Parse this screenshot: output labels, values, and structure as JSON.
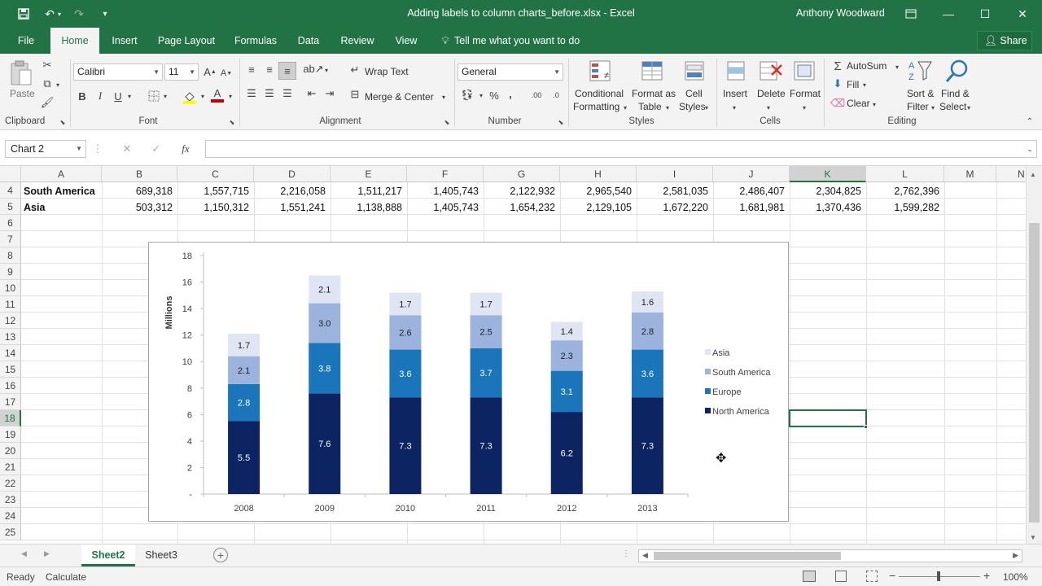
{
  "window": {
    "title": "Adding labels to column charts_before.xlsx - Excel",
    "user": "Anthony Woodward"
  },
  "tabs": [
    "File",
    "Home",
    "Insert",
    "Page Layout",
    "Formulas",
    "Data",
    "Review",
    "View"
  ],
  "tell_me": "Tell me what you want to do",
  "share_label": "Share",
  "ribbon": {
    "clipboard": {
      "paste": "Paste",
      "label": "Clipboard"
    },
    "font": {
      "name": "Calibri",
      "size": "11",
      "label": "Font",
      "bold": "B",
      "italic": "I",
      "underline": "U"
    },
    "alignment": {
      "wrap": "Wrap Text",
      "merge": "Merge & Center",
      "label": "Alignment"
    },
    "number": {
      "format": "General",
      "label": "Number",
      "percent": "%",
      "comma": ","
    },
    "styles": {
      "conditional": "Conditional",
      "conditional2": "Formatting",
      "format_table": "Format as",
      "format_table2": "Table",
      "cell": "Cell",
      "cell2": "Styles",
      "label": "Styles"
    },
    "cells": {
      "insert": "Insert",
      "delete": "Delete",
      "format": "Format",
      "label": "Cells"
    },
    "editing": {
      "autosum": "AutoSum",
      "fill": "Fill",
      "clear": "Clear",
      "sort": "Sort &",
      "sort2": "Filter",
      "find": "Find &",
      "find2": "Select",
      "label": "Editing"
    }
  },
  "formula_bar": {
    "name_box": "Chart 2",
    "fx": "fx",
    "value": ""
  },
  "grid": {
    "columns": [
      "A",
      "B",
      "C",
      "D",
      "E",
      "F",
      "G",
      "H",
      "I",
      "J",
      "K",
      "L",
      "M",
      "N"
    ],
    "selected_column": "K",
    "rows": [
      "4",
      "5",
      "6",
      "7",
      "8",
      "9",
      "10",
      "11",
      "12",
      "13",
      "14",
      "15",
      "16",
      "17",
      "18",
      "19",
      "20",
      "21",
      "22",
      "23",
      "24",
      "25"
    ],
    "selected_row": "18",
    "data_rows": [
      {
        "label": "South America",
        "values": [
          "689,318",
          "1,557,715",
          "2,216,058",
          "1,511,217",
          "1,405,743",
          "2,122,932",
          "2,965,540",
          "2,581,035",
          "2,486,407",
          "2,304,825",
          "2,762,396"
        ]
      },
      {
        "label": "Asia",
        "values": [
          "503,312",
          "1,150,312",
          "1,551,241",
          "1,138,888",
          "1,405,743",
          "1,654,232",
          "2,129,105",
          "1,672,220",
          "1,681,981",
          "1,370,436",
          "1,599,282"
        ]
      }
    ]
  },
  "chart_data": {
    "type": "bar",
    "stacked": true,
    "ylabel": "Millions",
    "ylim": [
      0,
      18
    ],
    "yticks": [
      "-",
      "2",
      "4",
      "6",
      "8",
      "10",
      "12",
      "14",
      "16",
      "18"
    ],
    "categories": [
      "2008",
      "2009",
      "2010",
      "2011",
      "2012",
      "2013"
    ],
    "legend_position": "right",
    "series": [
      {
        "name": "North America",
        "color": "#0c2461",
        "values": [
          5.5,
          7.6,
          7.3,
          7.3,
          6.2,
          7.3
        ],
        "labels": [
          "5.5",
          "7.6",
          "7.3",
          "7.3",
          "6.2",
          "7.3"
        ]
      },
      {
        "name": "Europe",
        "color": "#1b75bb",
        "values": [
          2.8,
          3.8,
          3.6,
          3.7,
          3.1,
          3.6
        ],
        "labels": [
          "2.8",
          "3.8",
          "3.6",
          "3.7",
          "3.1",
          "3.6"
        ]
      },
      {
        "name": "South America",
        "color": "#9bb3dd",
        "values": [
          2.1,
          3.0,
          2.6,
          2.5,
          2.3,
          2.8
        ],
        "labels": [
          "2.1",
          "3.0",
          "2.6",
          "2.5",
          "2.3",
          "2.8"
        ]
      },
      {
        "name": "Asia",
        "color": "#dfe5f2",
        "values": [
          1.7,
          2.1,
          1.7,
          1.7,
          1.4,
          1.6
        ],
        "labels": [
          "1.7",
          "2.1",
          "1.7",
          "1.7",
          "1.4",
          "1.6"
        ]
      }
    ]
  },
  "sheets": [
    "Sheet2",
    "Sheet3"
  ],
  "active_sheet": "Sheet2",
  "status": {
    "ready": "Ready",
    "calculate": "Calculate",
    "zoom": "100%"
  },
  "colors": {
    "excel_green": "#217346"
  }
}
